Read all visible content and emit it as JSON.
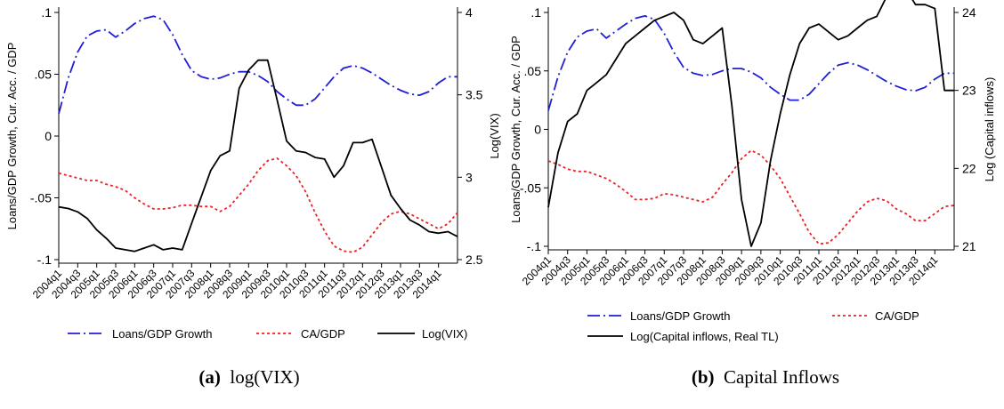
{
  "chart_data": [
    {
      "type": "line",
      "caption_label": "(a)",
      "caption_text": "log(VIX)",
      "ylabel": "Loans/GDP Growth, Cur. Acc. / GDP",
      "y2label": "Log(VIX)",
      "ylim": [
        -0.1,
        0.1
      ],
      "y2lim": [
        2.5,
        4
      ],
      "yticks": [
        ".1",
        ".05",
        "0",
        "-.05",
        "-.1"
      ],
      "yticks_values": [
        0.1,
        0.05,
        0,
        -0.05,
        -0.1
      ],
      "y2ticks": [
        "4",
        "3.5",
        "3",
        "2.5"
      ],
      "y2ticks_values": [
        4,
        3.5,
        3,
        2.5
      ],
      "xticks": [
        "2004q1",
        "2004q3",
        "2005q1",
        "2005q3",
        "2006q1",
        "2006q3",
        "2007q1",
        "2007q3",
        "2008q1",
        "2008q3",
        "2009q1",
        "2009q3",
        "2010q1",
        "2010q3",
        "2011q1",
        "2011q3",
        "2012q1",
        "2012q3",
        "2013q1",
        "2013q3",
        "2014q1"
      ],
      "n_quarters": 43,
      "legend_position": "bottom",
      "series": [
        {
          "name": "Loans/GDP Growth",
          "axis": "left",
          "color": "#1f1fd6",
          "dash": "dashdot",
          "values": [
            0.018,
            0.047,
            0.068,
            0.081,
            0.085,
            0.086,
            0.08,
            0.085,
            0.091,
            0.095,
            0.097,
            0.094,
            0.082,
            0.066,
            0.053,
            0.048,
            0.046,
            0.047,
            0.05,
            0.052,
            0.052,
            0.049,
            0.044,
            0.036,
            0.03,
            0.025,
            0.025,
            0.03,
            0.039,
            0.048,
            0.055,
            0.057,
            0.055,
            0.051,
            0.046,
            0.041,
            0.037,
            0.034,
            0.033,
            0.036,
            0.043,
            0.048,
            0.048
          ]
        },
        {
          "name": "CA/GDP",
          "axis": "left",
          "color": "#e8232a",
          "dash": "dot",
          "values": [
            -0.03,
            -0.032,
            -0.034,
            -0.036,
            -0.036,
            -0.039,
            -0.041,
            -0.044,
            -0.05,
            -0.055,
            -0.059,
            -0.059,
            -0.058,
            -0.056,
            -0.056,
            -0.057,
            -0.057,
            -0.061,
            -0.057,
            -0.048,
            -0.039,
            -0.028,
            -0.02,
            -0.018,
            -0.024,
            -0.032,
            -0.045,
            -0.062,
            -0.077,
            -0.089,
            -0.093,
            -0.094,
            -0.09,
            -0.08,
            -0.07,
            -0.063,
            -0.061,
            -0.063,
            -0.067,
            -0.071,
            -0.075,
            -0.071,
            -0.062
          ]
        },
        {
          "name": "Log(VIX)",
          "axis": "right",
          "color": "#000000",
          "dash": "solid",
          "values": [
            2.82,
            2.81,
            2.79,
            2.75,
            2.68,
            2.63,
            2.57,
            2.56,
            2.55,
            2.57,
            2.59,
            2.56,
            2.57,
            2.56,
            2.72,
            2.88,
            3.04,
            3.13,
            3.16,
            3.54,
            3.65,
            3.71,
            3.71,
            3.47,
            3.22,
            3.16,
            3.15,
            3.12,
            3.11,
            3.0,
            3.07,
            3.21,
            3.21,
            3.23,
            3.06,
            2.89,
            2.81,
            2.74,
            2.71,
            2.67,
            2.66,
            2.67,
            2.64
          ]
        }
      ]
    },
    {
      "type": "line",
      "caption_label": "(b)",
      "caption_text": "Capital Inflows",
      "ylabel": "Loans/GDP Growth, Cur. Acc. / GDP",
      "y2label": "Log (Capital inflows)",
      "ylim": [
        -0.1,
        0.1
      ],
      "y2lim": [
        21,
        24
      ],
      "yticks": [
        ".1",
        ".05",
        "0",
        "-.05",
        "-.1"
      ],
      "yticks_values": [
        0.1,
        0.05,
        0,
        -0.05,
        -0.1
      ],
      "y2ticks": [
        "24",
        "23",
        "22",
        "21"
      ],
      "y2ticks_values": [
        24,
        23,
        22,
        21
      ],
      "xticks": [
        "2004q1",
        "2004q3",
        "2005q1",
        "2005q3",
        "2006q1",
        "2006q3",
        "2007q1",
        "2007q3",
        "2008q1",
        "2008q3",
        "2009q1",
        "2009q3",
        "2010q1",
        "2010q3",
        "2011q1",
        "2011q3",
        "2012q1",
        "2012q3",
        "2013q1",
        "2013q3",
        "2014q1"
      ],
      "n_quarters": 43,
      "legend_position": "bottom",
      "series": [
        {
          "name": "Loans/GDP Growth",
          "axis": "left",
          "color": "#1f1fd6",
          "dash": "dashdot",
          "values": [
            0.016,
            0.045,
            0.066,
            0.079,
            0.084,
            0.086,
            0.078,
            0.084,
            0.09,
            0.095,
            0.097,
            0.094,
            0.082,
            0.066,
            0.053,
            0.048,
            0.046,
            0.047,
            0.05,
            0.052,
            0.052,
            0.049,
            0.044,
            0.036,
            0.03,
            0.025,
            0.025,
            0.03,
            0.039,
            0.048,
            0.055,
            0.057,
            0.055,
            0.051,
            0.046,
            0.041,
            0.037,
            0.034,
            0.033,
            0.036,
            0.043,
            0.048,
            0.048
          ]
        },
        {
          "name": "CA/GDP",
          "axis": "left",
          "color": "#e8232a",
          "dash": "dot",
          "values": [
            -0.027,
            -0.03,
            -0.034,
            -0.036,
            -0.036,
            -0.039,
            -0.042,
            -0.047,
            -0.053,
            -0.06,
            -0.06,
            -0.059,
            -0.055,
            -0.056,
            -0.058,
            -0.06,
            -0.062,
            -0.058,
            -0.047,
            -0.037,
            -0.025,
            -0.018,
            -0.022,
            -0.031,
            -0.042,
            -0.057,
            -0.072,
            -0.088,
            -0.098,
            -0.097,
            -0.09,
            -0.08,
            -0.07,
            -0.062,
            -0.059,
            -0.061,
            -0.068,
            -0.072,
            -0.078,
            -0.078,
            -0.072,
            -0.066,
            -0.065
          ]
        },
        {
          "name": "Log(Capital inflows, Real TL)",
          "axis": "right",
          "color": "#000000",
          "dash": "solid",
          "values": [
            21.5,
            22.2,
            22.6,
            22.7,
            23.0,
            23.1,
            23.2,
            23.4,
            23.6,
            23.7,
            23.8,
            23.9,
            23.95,
            24.0,
            23.9,
            23.65,
            23.6,
            23.7,
            23.8,
            22.8,
            21.6,
            21.0,
            21.3,
            22.1,
            22.7,
            23.2,
            23.6,
            23.8,
            23.85,
            23.75,
            23.65,
            23.7,
            23.8,
            23.9,
            23.95,
            24.2,
            24.3,
            24.3,
            24.1,
            24.1,
            24.05,
            23.0,
            23.0
          ]
        }
      ]
    }
  ]
}
